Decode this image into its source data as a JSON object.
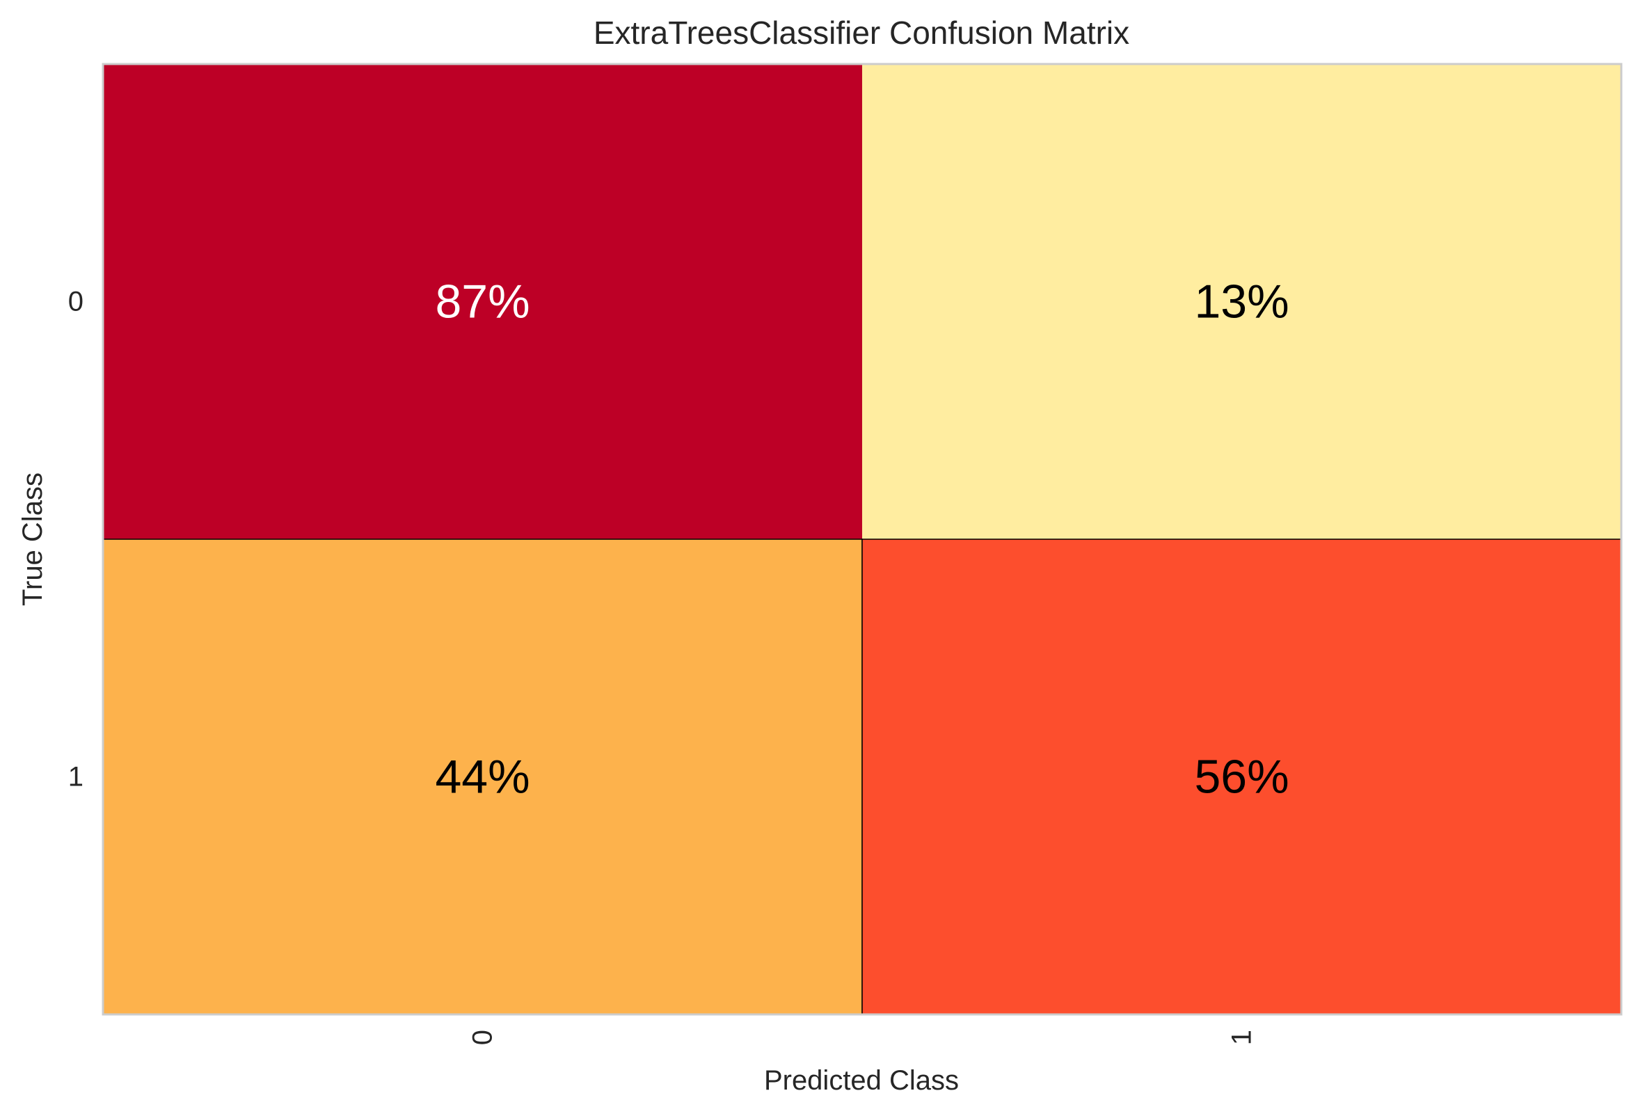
{
  "chart_data": {
    "type": "heatmap",
    "title": "ExtraTreesClassifier Confusion Matrix",
    "xlabel": "Predicted Class",
    "ylabel": "True Class",
    "x_categories": [
      "0",
      "1"
    ],
    "y_categories": [
      "0",
      "1"
    ],
    "values": [
      [
        87,
        13
      ],
      [
        44,
        56
      ]
    ],
    "value_format": "percent",
    "cell_labels": [
      [
        "87%",
        "13%"
      ],
      [
        "44%",
        "56%"
      ]
    ],
    "cell_colors": [
      [
        "#bd0026",
        "#ffeda0"
      ],
      [
        "#fdb24c",
        "#fd4e2d"
      ]
    ],
    "cell_text_colors": [
      [
        "#ffffff",
        "#000000"
      ],
      [
        "#000000",
        "#000000"
      ]
    ],
    "colormap": "YlOrRd",
    "x_tick_rotation": 90,
    "grid": false
  }
}
